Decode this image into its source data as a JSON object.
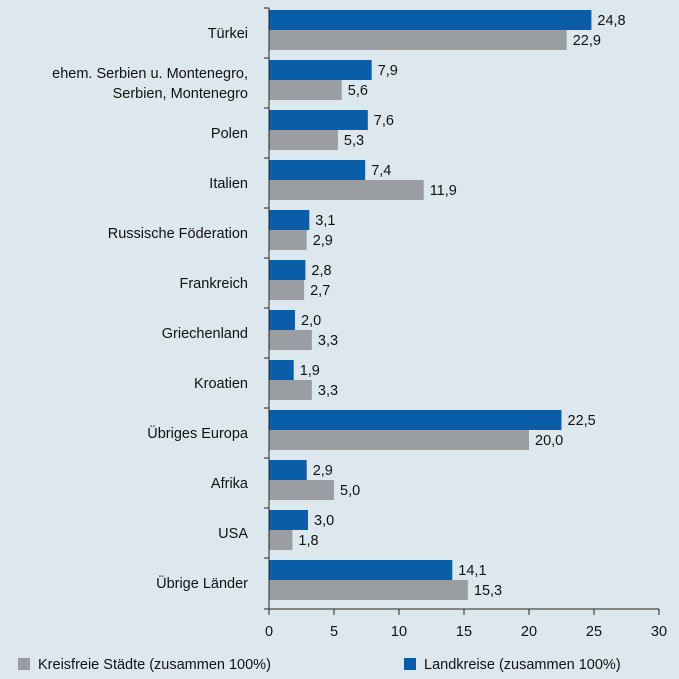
{
  "chart_data": {
    "type": "bar",
    "orientation": "horizontal",
    "categories": [
      "Türkei",
      "ehem. Serbien u. Montenegro,\nSerbien, Montenegro",
      "Polen",
      "Italien",
      "Russische Föderation",
      "Frankreich",
      "Griechenland",
      "Kroatien",
      "Übriges Europa",
      "Afrika",
      "USA",
      "Übrige Länder"
    ],
    "series": [
      {
        "name": "Landkreise (zusammen 100%)",
        "color": "#0a5ea8",
        "values": [
          24.8,
          7.9,
          7.6,
          7.4,
          3.1,
          2.8,
          2.0,
          1.9,
          22.5,
          2.9,
          3.0,
          14.1
        ],
        "labels": [
          "24,8",
          "7,9",
          "7,6",
          "7,4",
          "3,1",
          "2,8",
          "2,0",
          "1,9",
          "22,5",
          "2,9",
          "3,0",
          "14,1"
        ]
      },
      {
        "name": "Kreisfreie Städte (zusammen 100%)",
        "color": "#9a9ea3",
        "values": [
          22.9,
          5.6,
          5.3,
          11.9,
          2.9,
          2.7,
          3.3,
          3.3,
          20.0,
          5.0,
          1.8,
          15.3
        ],
        "labels": [
          "22,9",
          "5,6",
          "5,3",
          "11,9",
          "2,9",
          "2,7",
          "3,3",
          "3,3",
          "20,0",
          "5,0",
          "1,8",
          "15,3"
        ]
      }
    ],
    "xlim": [
      0,
      30
    ],
    "xticks": [
      0,
      5,
      10,
      15,
      20,
      25,
      30
    ],
    "grid": false,
    "legend": {
      "placement": "bottom",
      "entries": [
        {
          "name": "Kreisfreie Städte (zusammen 100%)",
          "color": "#9a9ea3"
        },
        {
          "name": "Landkreise (zusammen 100%)",
          "color": "#0a5ea8"
        }
      ]
    }
  }
}
